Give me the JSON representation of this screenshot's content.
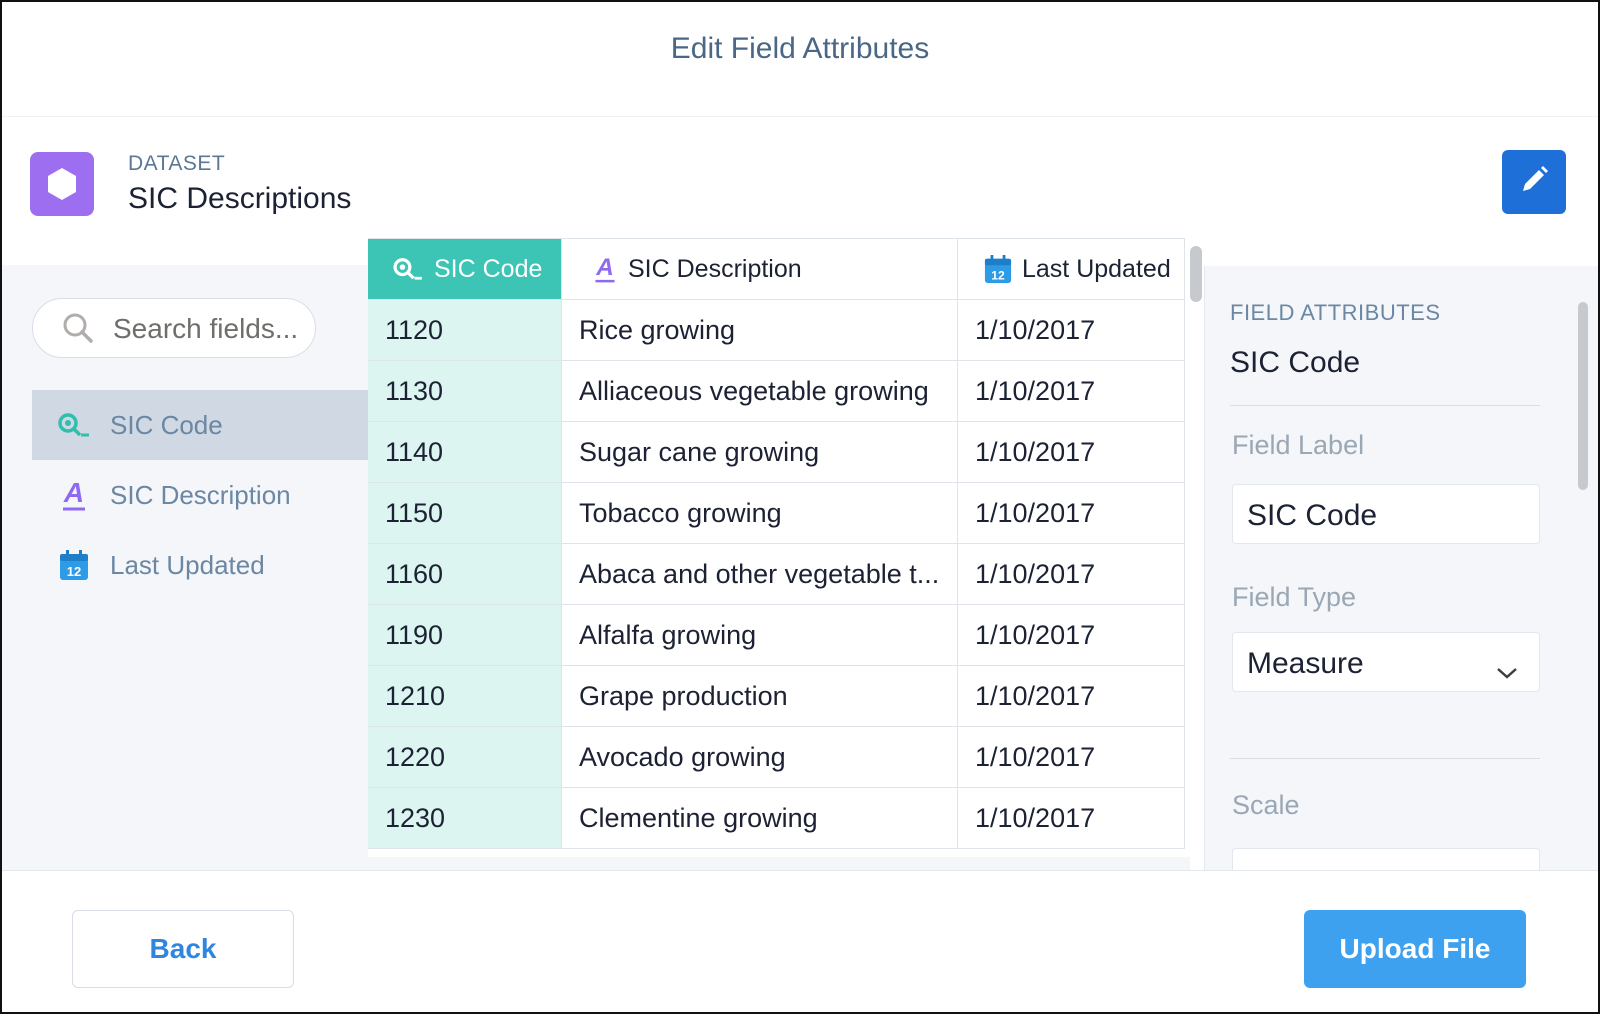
{
  "modal": {
    "title": "Edit Field Attributes"
  },
  "dataset": {
    "kicker": "DATASET",
    "name": "SIC Descriptions"
  },
  "search": {
    "placeholder": "Search fields..."
  },
  "fields": [
    {
      "label": "SIC Code",
      "icon": "dimension-key-icon",
      "selected": true
    },
    {
      "label": "SIC Description",
      "icon": "text-field-icon",
      "selected": false
    },
    {
      "label": "Last Updated",
      "icon": "calendar-icon",
      "selected": false
    }
  ],
  "grid": {
    "columns": [
      {
        "label": "SIC Code",
        "icon": "dimension-key-icon"
      },
      {
        "label": "SIC Description",
        "icon": "text-field-icon"
      },
      {
        "label": "Last Updated",
        "icon": "calendar-icon"
      }
    ],
    "rows": [
      [
        "1120",
        "Rice growing",
        "1/10/2017"
      ],
      [
        "1130",
        "Alliaceous vegetable growing",
        "1/10/2017"
      ],
      [
        "1140",
        "Sugar cane growing",
        "1/10/2017"
      ],
      [
        "1150",
        "Tobacco growing",
        "1/10/2017"
      ],
      [
        "1160",
        "Abaca and other vegetable t...",
        "1/10/2017"
      ],
      [
        "1190",
        "Alfalfa growing",
        "1/10/2017"
      ],
      [
        "1210",
        "Grape production",
        "1/10/2017"
      ],
      [
        "1220",
        "Avocado growing",
        "1/10/2017"
      ],
      [
        "1230",
        "Clementine growing",
        "1/10/2017"
      ]
    ]
  },
  "attributes": {
    "kicker": "FIELD ATTRIBUTES",
    "field_name": "SIC Code",
    "field_label_title": "Field Label",
    "field_label_value": "SIC Code",
    "field_type_title": "Field Type",
    "field_type_value": "Measure",
    "scale_title": "Scale"
  },
  "footer": {
    "back_label": "Back",
    "upload_label": "Upload File"
  },
  "colors": {
    "accent": "#3cc4b5",
    "primary": "#3ea1f0",
    "dataset_icon": "#9d6ff0",
    "edit_button": "#1f6fd9"
  }
}
